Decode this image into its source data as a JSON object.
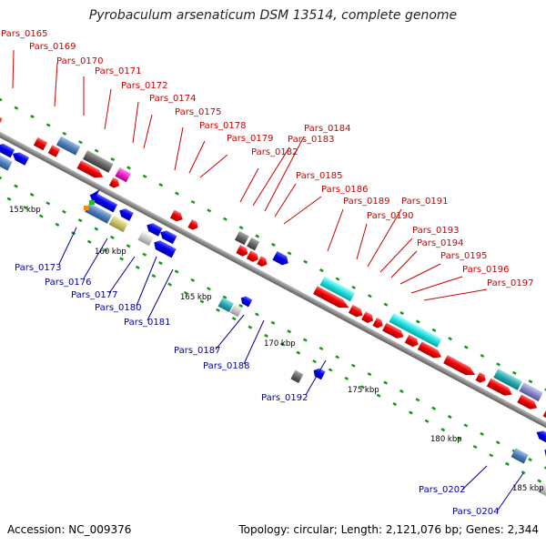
{
  "title": "Pyrobaculum arsenaticum DSM 13514, complete genome",
  "footer": {
    "accession": "Accession: NC_009376",
    "topology": "Topology: circular; Length: 2,121,076 bp; Genes: 2,344"
  },
  "colors": {
    "forward_gene": "#ee0000",
    "reverse_gene": "#0000dd",
    "backbone": "#8c8c8c",
    "tick": "#119911",
    "forward_label": "#cc0000",
    "reverse_label": "#000099"
  },
  "position_labels": [
    "155 kbp",
    "160 kbp",
    "165 kbp",
    "170 kbp",
    "175 kbp",
    "180 kbp",
    "185 kbp"
  ],
  "forward_gene_labels": [
    "Pars_0165",
    "Pars_0169",
    "Pars_0170",
    "Pars_0171",
    "Pars_0172",
    "Pars_0174",
    "Pars_0175",
    "Pars_0178",
    "Pars_0179",
    "Pars_0182",
    "Pars_0183",
    "Pars_0184",
    "Pars_0185",
    "Pars_0186",
    "Pars_0189",
    "Pars_0190",
    "Pars_0191",
    "Pars_0193",
    "Pars_0194",
    "Pars_0195",
    "Pars_0196",
    "Pars_0197"
  ],
  "reverse_gene_labels": [
    "Pars_0173",
    "Pars_0176",
    "Pars_0177",
    "Pars_0180",
    "Pars_0181",
    "Pars_0187",
    "Pars_0188",
    "Pars_0192",
    "Pars_0202",
    "Pars_0204"
  ]
}
